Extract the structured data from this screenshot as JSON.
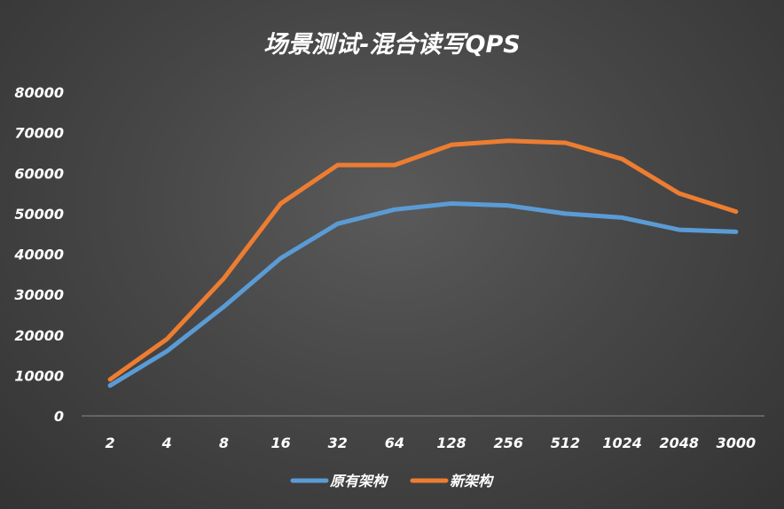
{
  "chart_data": {
    "type": "line",
    "title": "场景测试-混合读写QPS",
    "xlabel": "",
    "ylabel": "",
    "categories": [
      "2",
      "4",
      "8",
      "16",
      "32",
      "64",
      "128",
      "256",
      "512",
      "1024",
      "2048",
      "3000"
    ],
    "ylim": [
      0,
      80000
    ],
    "yticks": [
      "0",
      "10000",
      "20000",
      "30000",
      "40000",
      "50000",
      "60000",
      "70000",
      "80000"
    ],
    "grid": false,
    "legend_position": "bottom",
    "series": [
      {
        "name": "原有架构",
        "color": "#5b9bd5",
        "values": [
          7500,
          16000,
          27000,
          39000,
          47500,
          51000,
          52500,
          52000,
          50000,
          49000,
          46000,
          45500
        ]
      },
      {
        "name": "新架构",
        "color": "#ed7d31",
        "values": [
          9000,
          19000,
          34000,
          52500,
          62000,
          62000,
          67000,
          68000,
          67500,
          63500,
          55000,
          50500
        ]
      }
    ]
  }
}
